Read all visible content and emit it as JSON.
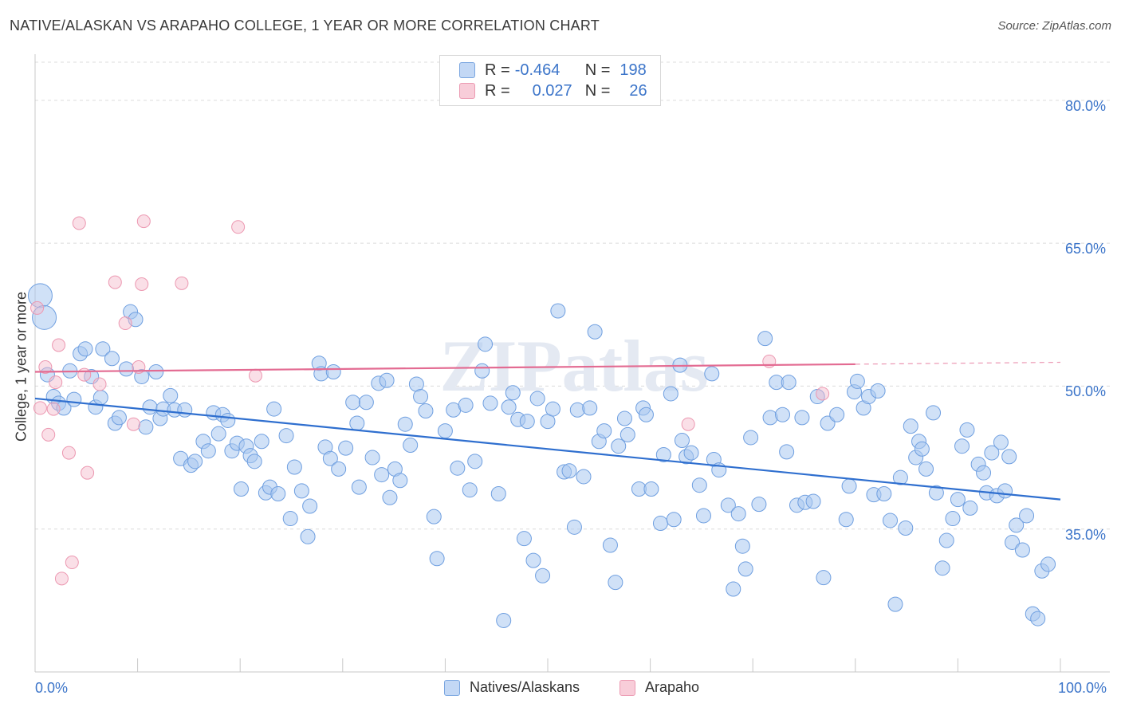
{
  "title": "NATIVE/ALASKAN VS ARAPAHO COLLEGE, 1 YEAR OR MORE CORRELATION CHART",
  "source": "Source: ZipAtlas.com",
  "watermark": "ZIPatlas",
  "legend": {
    "rows": [
      {
        "r_label": "R =",
        "r_value": "-0.464",
        "n_label": "N =",
        "n_value": "198",
        "color": "#aac8f0"
      },
      {
        "r_label": "R =",
        "r_value": "0.027",
        "n_label": "N =",
        "n_value": "26",
        "color": "#f5b8c9"
      }
    ]
  },
  "bottom_legend": [
    "Natives/Alaskans",
    "Arapaho"
  ],
  "chart_data": {
    "type": "scatter",
    "title": "NATIVE/ALASKAN VS ARAPAHO COLLEGE, 1 YEAR OR MORE CORRELATION CHART",
    "xlabel": "",
    "ylabel": "College, 1 year or more",
    "xlim": [
      0,
      100
    ],
    "ylim": [
      20,
      84
    ],
    "x_tick_labels": [
      "0.0%",
      "100.0%"
    ],
    "y_ticks": [
      35,
      50,
      65,
      80
    ],
    "y_tick_labels": [
      "35.0%",
      "50.0%",
      "65.0%",
      "80.0%"
    ],
    "grid": true,
    "legend_position": "top-center",
    "colors": {
      "natives": "#8fb6ea",
      "natives_line": "#2f6fcf",
      "arapaho": "#f2a9bf",
      "arapaho_line": "#e36b92"
    },
    "series": [
      {
        "name": "Natives/Alaskans",
        "trend": {
          "x": [
            0,
            100
          ],
          "y": [
            48.7,
            38.1
          ]
        },
        "points": [
          [
            0.5,
            59.5
          ],
          [
            0.9,
            57.2
          ],
          [
            1.2,
            51.2
          ],
          [
            1.8,
            48.9
          ],
          [
            2.3,
            48.2
          ],
          [
            2.8,
            47.7
          ],
          [
            3.4,
            51.6
          ],
          [
            3.8,
            48.6
          ],
          [
            4.4,
            53.4
          ],
          [
            4.9,
            53.9
          ],
          [
            5.5,
            51.0
          ],
          [
            5.9,
            47.8
          ],
          [
            6.4,
            48.8
          ],
          [
            6.6,
            53.9
          ],
          [
            7.5,
            52.9
          ],
          [
            7.8,
            46.1
          ],
          [
            8.2,
            46.7
          ],
          [
            8.9,
            51.8
          ],
          [
            9.3,
            57.8
          ],
          [
            9.8,
            57.0
          ],
          [
            10.4,
            51.0
          ],
          [
            10.8,
            45.7
          ],
          [
            11.2,
            47.8
          ],
          [
            11.8,
            51.5
          ],
          [
            12.2,
            46.6
          ],
          [
            12.5,
            47.6
          ],
          [
            13.2,
            49.0
          ],
          [
            13.6,
            47.5
          ],
          [
            14.2,
            42.4
          ],
          [
            14.6,
            47.5
          ],
          [
            15.2,
            41.7
          ],
          [
            15.6,
            42.1
          ],
          [
            16.4,
            44.2
          ],
          [
            16.9,
            43.2
          ],
          [
            17.4,
            47.2
          ],
          [
            17.9,
            45.0
          ],
          [
            18.3,
            47.0
          ],
          [
            18.8,
            46.4
          ],
          [
            19.2,
            43.2
          ],
          [
            19.7,
            44.0
          ],
          [
            20.1,
            39.2
          ],
          [
            20.6,
            43.7
          ],
          [
            21.0,
            42.7
          ],
          [
            21.4,
            42.1
          ],
          [
            22.1,
            44.2
          ],
          [
            22.5,
            38.8
          ],
          [
            22.9,
            39.4
          ],
          [
            23.3,
            47.6
          ],
          [
            23.7,
            38.7
          ],
          [
            24.5,
            44.8
          ],
          [
            24.9,
            36.1
          ],
          [
            25.3,
            41.5
          ],
          [
            26.0,
            39.0
          ],
          [
            26.6,
            34.2
          ],
          [
            26.8,
            37.4
          ],
          [
            27.7,
            52.4
          ],
          [
            27.9,
            51.3
          ],
          [
            28.3,
            43.6
          ],
          [
            28.8,
            42.4
          ],
          [
            29.1,
            51.5
          ],
          [
            29.6,
            41.3
          ],
          [
            30.3,
            43.5
          ],
          [
            31.0,
            48.3
          ],
          [
            31.4,
            46.1
          ],
          [
            31.6,
            39.4
          ],
          [
            32.3,
            48.3
          ],
          [
            32.9,
            42.5
          ],
          [
            33.5,
            50.3
          ],
          [
            33.8,
            40.7
          ],
          [
            34.3,
            50.6
          ],
          [
            34.6,
            38.3
          ],
          [
            35.1,
            41.3
          ],
          [
            35.6,
            40.1
          ],
          [
            36.1,
            46.0
          ],
          [
            36.6,
            43.8
          ],
          [
            37.2,
            50.2
          ],
          [
            37.6,
            48.9
          ],
          [
            38.1,
            47.4
          ],
          [
            38.9,
            36.3
          ],
          [
            39.2,
            31.9
          ],
          [
            40.0,
            45.3
          ],
          [
            40.8,
            47.5
          ],
          [
            41.2,
            41.4
          ],
          [
            42.0,
            48.0
          ],
          [
            42.4,
            39.1
          ],
          [
            42.9,
            42.1
          ],
          [
            43.6,
            51.6
          ],
          [
            43.9,
            54.4
          ],
          [
            44.4,
            48.2
          ],
          [
            45.2,
            38.7
          ],
          [
            45.7,
            25.4
          ],
          [
            46.2,
            47.8
          ],
          [
            46.6,
            49.3
          ],
          [
            47.1,
            46.5
          ],
          [
            47.7,
            34.0
          ],
          [
            48.0,
            46.3
          ],
          [
            48.6,
            31.7
          ],
          [
            49.0,
            48.7
          ],
          [
            49.5,
            30.1
          ],
          [
            50.0,
            46.3
          ],
          [
            50.5,
            47.6
          ],
          [
            51.0,
            57.9
          ],
          [
            51.6,
            41.0
          ],
          [
            52.1,
            41.1
          ],
          [
            52.6,
            35.2
          ],
          [
            52.9,
            47.5
          ],
          [
            53.5,
            40.5
          ],
          [
            54.1,
            47.7
          ],
          [
            54.6,
            55.7
          ],
          [
            55.0,
            44.2
          ],
          [
            55.5,
            45.3
          ],
          [
            56.1,
            33.3
          ],
          [
            56.6,
            29.4
          ],
          [
            56.9,
            43.7
          ],
          [
            57.5,
            46.6
          ],
          [
            57.8,
            44.9
          ],
          [
            58.9,
            39.2
          ],
          [
            59.3,
            47.7
          ],
          [
            59.6,
            47.0
          ],
          [
            60.1,
            39.2
          ],
          [
            61.0,
            35.6
          ],
          [
            61.3,
            42.8
          ],
          [
            62.0,
            49.2
          ],
          [
            62.3,
            36.0
          ],
          [
            62.9,
            52.2
          ],
          [
            63.1,
            44.3
          ],
          [
            63.5,
            42.6
          ],
          [
            64.0,
            43.0
          ],
          [
            64.8,
            39.6
          ],
          [
            65.2,
            36.4
          ],
          [
            66.0,
            51.3
          ],
          [
            66.2,
            42.3
          ],
          [
            66.7,
            41.2
          ],
          [
            67.6,
            37.5
          ],
          [
            68.1,
            28.7
          ],
          [
            68.6,
            36.6
          ],
          [
            69.0,
            33.2
          ],
          [
            69.3,
            30.8
          ],
          [
            69.8,
            44.6
          ],
          [
            70.6,
            37.6
          ],
          [
            71.2,
            55.0
          ],
          [
            71.7,
            46.7
          ],
          [
            72.3,
            50.4
          ],
          [
            72.9,
            47.0
          ],
          [
            73.3,
            43.1
          ],
          [
            73.5,
            50.4
          ],
          [
            74.3,
            37.5
          ],
          [
            74.8,
            46.7
          ],
          [
            75.1,
            37.8
          ],
          [
            75.9,
            37.9
          ],
          [
            76.3,
            48.9
          ],
          [
            76.9,
            29.9
          ],
          [
            77.3,
            46.1
          ],
          [
            78.2,
            47.0
          ],
          [
            79.1,
            36.0
          ],
          [
            79.4,
            39.5
          ],
          [
            79.9,
            49.4
          ],
          [
            80.2,
            50.5
          ],
          [
            80.8,
            47.7
          ],
          [
            81.3,
            48.9
          ],
          [
            81.8,
            38.6
          ],
          [
            82.2,
            49.5
          ],
          [
            82.8,
            38.7
          ],
          [
            83.4,
            35.9
          ],
          [
            83.9,
            27.1
          ],
          [
            84.4,
            40.4
          ],
          [
            84.9,
            35.1
          ],
          [
            85.4,
            45.8
          ],
          [
            85.9,
            42.5
          ],
          [
            86.2,
            44.2
          ],
          [
            86.5,
            43.4
          ],
          [
            86.9,
            41.3
          ],
          [
            87.6,
            47.2
          ],
          [
            87.9,
            38.8
          ],
          [
            88.5,
            30.9
          ],
          [
            88.9,
            33.8
          ],
          [
            89.5,
            36.1
          ],
          [
            90.0,
            38.1
          ],
          [
            90.4,
            43.7
          ],
          [
            90.9,
            45.4
          ],
          [
            91.2,
            37.2
          ],
          [
            92.0,
            41.8
          ],
          [
            92.5,
            40.9
          ],
          [
            92.8,
            38.8
          ],
          [
            93.3,
            43.0
          ],
          [
            93.8,
            38.5
          ],
          [
            94.2,
            44.1
          ],
          [
            94.6,
            39.0
          ],
          [
            95.0,
            42.6
          ],
          [
            95.3,
            33.6
          ],
          [
            95.7,
            35.4
          ],
          [
            96.3,
            32.8
          ],
          [
            96.7,
            36.4
          ],
          [
            97.3,
            26.1
          ],
          [
            97.8,
            25.6
          ],
          [
            98.2,
            30.6
          ],
          [
            98.8,
            31.3
          ]
        ]
      },
      {
        "name": "Arapaho",
        "trend": {
          "x": [
            0,
            80
          ],
          "y": [
            51.5,
            52.3
          ]
        },
        "trend_dashed": {
          "x": [
            80,
            100
          ],
          "y": [
            52.3,
            52.5
          ]
        },
        "points": [
          [
            0.2,
            58.2
          ],
          [
            0.5,
            47.7
          ],
          [
            1.0,
            52.0
          ],
          [
            1.3,
            44.9
          ],
          [
            1.8,
            47.6
          ],
          [
            2.0,
            50.4
          ],
          [
            2.3,
            54.3
          ],
          [
            3.3,
            43.0
          ],
          [
            4.3,
            67.1
          ],
          [
            4.8,
            51.2
          ],
          [
            5.1,
            40.9
          ],
          [
            6.3,
            50.2
          ],
          [
            7.8,
            60.9
          ],
          [
            8.8,
            56.6
          ],
          [
            9.6,
            46.0
          ],
          [
            10.1,
            52.0
          ],
          [
            10.4,
            60.7
          ],
          [
            10.6,
            67.3
          ],
          [
            14.3,
            60.8
          ],
          [
            19.8,
            66.7
          ],
          [
            21.5,
            51.1
          ],
          [
            3.6,
            31.5
          ],
          [
            2.6,
            29.8
          ],
          [
            63.7,
            46.0
          ],
          [
            71.6,
            52.6
          ],
          [
            76.8,
            49.2
          ]
        ]
      }
    ]
  }
}
